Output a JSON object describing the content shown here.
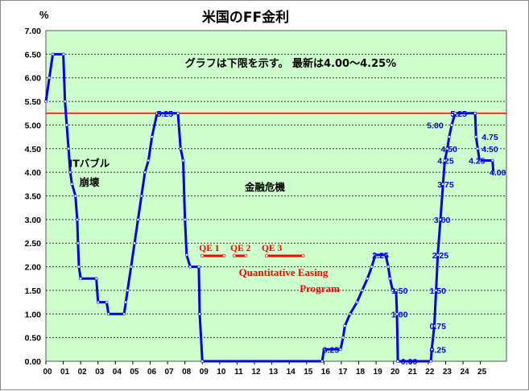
{
  "chart_data": {
    "type": "line",
    "title": "米国のFF金利",
    "subtitle": "グラフは下限を示す。 最新は4.00〜4.25%",
    "ylabel": "%",
    "ylim": [
      0,
      7.0
    ],
    "yticks": [
      "0.00",
      "0.50",
      "1.00",
      "1.50",
      "2.00",
      "2.50",
      "3.00",
      "3.50",
      "4.00",
      "4.50",
      "5.00",
      "5.50",
      "6.00",
      "6.50",
      "7.00"
    ],
    "xlim": [
      2000,
      2026.5
    ],
    "xticks": [
      "00",
      "01",
      "02",
      "03",
      "04",
      "05",
      "06",
      "07",
      "08",
      "09",
      "10",
      "11",
      "12",
      "13",
      "14",
      "15",
      "16",
      "17",
      "18",
      "19",
      "20",
      "21",
      "22",
      "23",
      "24",
      "25"
    ],
    "grid": true,
    "colors": {
      "plot_bg": "#ccffcc",
      "line": "#0000ee",
      "reference": "#ff0000",
      "qe": "#ff0000",
      "text_blue": "#0000ee",
      "text_red": "#ff0000"
    },
    "reference_line": 5.25,
    "series": [
      {
        "values": [
          [
            2000.0,
            5.5
          ],
          [
            2000.2,
            6.0
          ],
          [
            2000.4,
            6.5
          ],
          [
            2001.0,
            6.5
          ],
          [
            2001.1,
            5.5
          ],
          [
            2001.2,
            5.0
          ],
          [
            2001.3,
            4.5
          ],
          [
            2001.4,
            4.0
          ],
          [
            2001.5,
            3.75
          ],
          [
            2001.7,
            3.5
          ],
          [
            2001.8,
            3.0
          ],
          [
            2001.85,
            2.5
          ],
          [
            2001.9,
            2.0
          ],
          [
            2002.0,
            1.75
          ],
          [
            2002.9,
            1.75
          ],
          [
            2003.0,
            1.25
          ],
          [
            2003.5,
            1.25
          ],
          [
            2003.6,
            1.0
          ],
          [
            2004.5,
            1.0
          ],
          [
            2004.6,
            1.25
          ],
          [
            2004.7,
            1.5
          ],
          [
            2004.9,
            2.0
          ],
          [
            2005.1,
            2.5
          ],
          [
            2005.3,
            3.0
          ],
          [
            2005.5,
            3.5
          ],
          [
            2005.7,
            4.0
          ],
          [
            2005.9,
            4.25
          ],
          [
            2006.1,
            4.75
          ],
          [
            2006.4,
            5.25
          ],
          [
            2007.6,
            5.25
          ],
          [
            2007.75,
            4.5
          ],
          [
            2007.9,
            4.25
          ],
          [
            2008.0,
            3.0
          ],
          [
            2008.1,
            2.25
          ],
          [
            2008.3,
            2.0
          ],
          [
            2008.8,
            2.0
          ],
          [
            2008.85,
            1.0
          ],
          [
            2009.0,
            0.0
          ],
          [
            2015.9,
            0.0
          ],
          [
            2016.0,
            0.25
          ],
          [
            2016.95,
            0.25
          ],
          [
            2017.1,
            0.5
          ],
          [
            2017.2,
            0.75
          ],
          [
            2017.5,
            1.0
          ],
          [
            2017.9,
            1.25
          ],
          [
            2018.2,
            1.5
          ],
          [
            2018.5,
            1.75
          ],
          [
            2018.75,
            2.0
          ],
          [
            2018.95,
            2.25
          ],
          [
            2019.55,
            2.25
          ],
          [
            2019.7,
            2.0
          ],
          [
            2019.8,
            1.75
          ],
          [
            2019.95,
            1.5
          ],
          [
            2020.15,
            1.5
          ],
          [
            2020.2,
            1.0
          ],
          [
            2020.25,
            0.0
          ],
          [
            2022.15,
            0.0
          ],
          [
            2022.2,
            0.25
          ],
          [
            2022.35,
            0.75
          ],
          [
            2022.45,
            1.5
          ],
          [
            2022.55,
            2.25
          ],
          [
            2022.7,
            3.0
          ],
          [
            2022.85,
            3.75
          ],
          [
            2022.95,
            4.25
          ],
          [
            2023.1,
            4.5
          ],
          [
            2023.2,
            4.75
          ],
          [
            2023.35,
            5.0
          ],
          [
            2023.55,
            5.25
          ],
          [
            2024.7,
            5.25
          ],
          [
            2024.75,
            4.75
          ],
          [
            2024.85,
            4.5
          ],
          [
            2024.95,
            4.25
          ],
          [
            2025.7,
            4.25
          ],
          [
            2025.75,
            4.0
          ]
        ]
      }
    ],
    "point_labels": [
      {
        "text": "5.25",
        "x": 2006.85,
        "y": 5.25
      },
      {
        "text": "2.25",
        "x": 2019.25,
        "y": 2.25
      },
      {
        "text": "0.25",
        "x": 2016.4,
        "y": 0.25
      },
      {
        "text": "1.50",
        "x": 2020.35,
        "y": 1.5
      },
      {
        "text": "1.00",
        "x": 2020.35,
        "y": 1.0
      },
      {
        "text": "0.00",
        "x": 2020.9,
        "y": 0.0
      },
      {
        "text": "0.25",
        "x": 2022.55,
        "y": 0.25
      },
      {
        "text": "0.75",
        "x": 2022.55,
        "y": 0.75
      },
      {
        "text": "1.50",
        "x": 2022.55,
        "y": 1.5
      },
      {
        "text": "2.25",
        "x": 2022.7,
        "y": 2.25
      },
      {
        "text": "3.00",
        "x": 2022.8,
        "y": 3.0
      },
      {
        "text": "3.75",
        "x": 2023.0,
        "y": 3.75
      },
      {
        "text": "4.25",
        "x": 2023.0,
        "y": 4.25
      },
      {
        "text": "4.50",
        "x": 2023.2,
        "y": 4.5
      },
      {
        "text": "5.00",
        "x": 2022.4,
        "y": 5.0
      },
      {
        "text": "5.25",
        "x": 2023.75,
        "y": 5.25
      },
      {
        "text": "4.75",
        "x": 2025.55,
        "y": 4.75
      },
      {
        "text": "4.50",
        "x": 2025.55,
        "y": 4.5
      },
      {
        "text": "4.25",
        "x": 2024.8,
        "y": 4.25
      },
      {
        "text": "4.00",
        "x": 2026.0,
        "y": 4.0
      }
    ],
    "annotations": [
      {
        "id": "it-bubble-1",
        "text": "ITバブル",
        "x": 2002.5,
        "y": 4.2
      },
      {
        "id": "it-bubble-2",
        "text": "崩壊",
        "x": 2002.5,
        "y": 3.8
      },
      {
        "id": "financial-crisis",
        "text": "金融危機",
        "x": 2012.6,
        "y": 3.7
      }
    ],
    "qe_periods": [
      {
        "label": "QE 1",
        "start": 2009.0,
        "end": 2010.25,
        "label_x": 2009.4
      },
      {
        "label": "QE 2",
        "start": 2010.85,
        "end": 2011.5,
        "label_x": 2011.2
      },
      {
        "label": "QE 3",
        "start": 2012.7,
        "end": 2014.8,
        "label_x": 2013.0
      }
    ],
    "qe_program": [
      "Quantitative Easing",
      "Program"
    ]
  }
}
